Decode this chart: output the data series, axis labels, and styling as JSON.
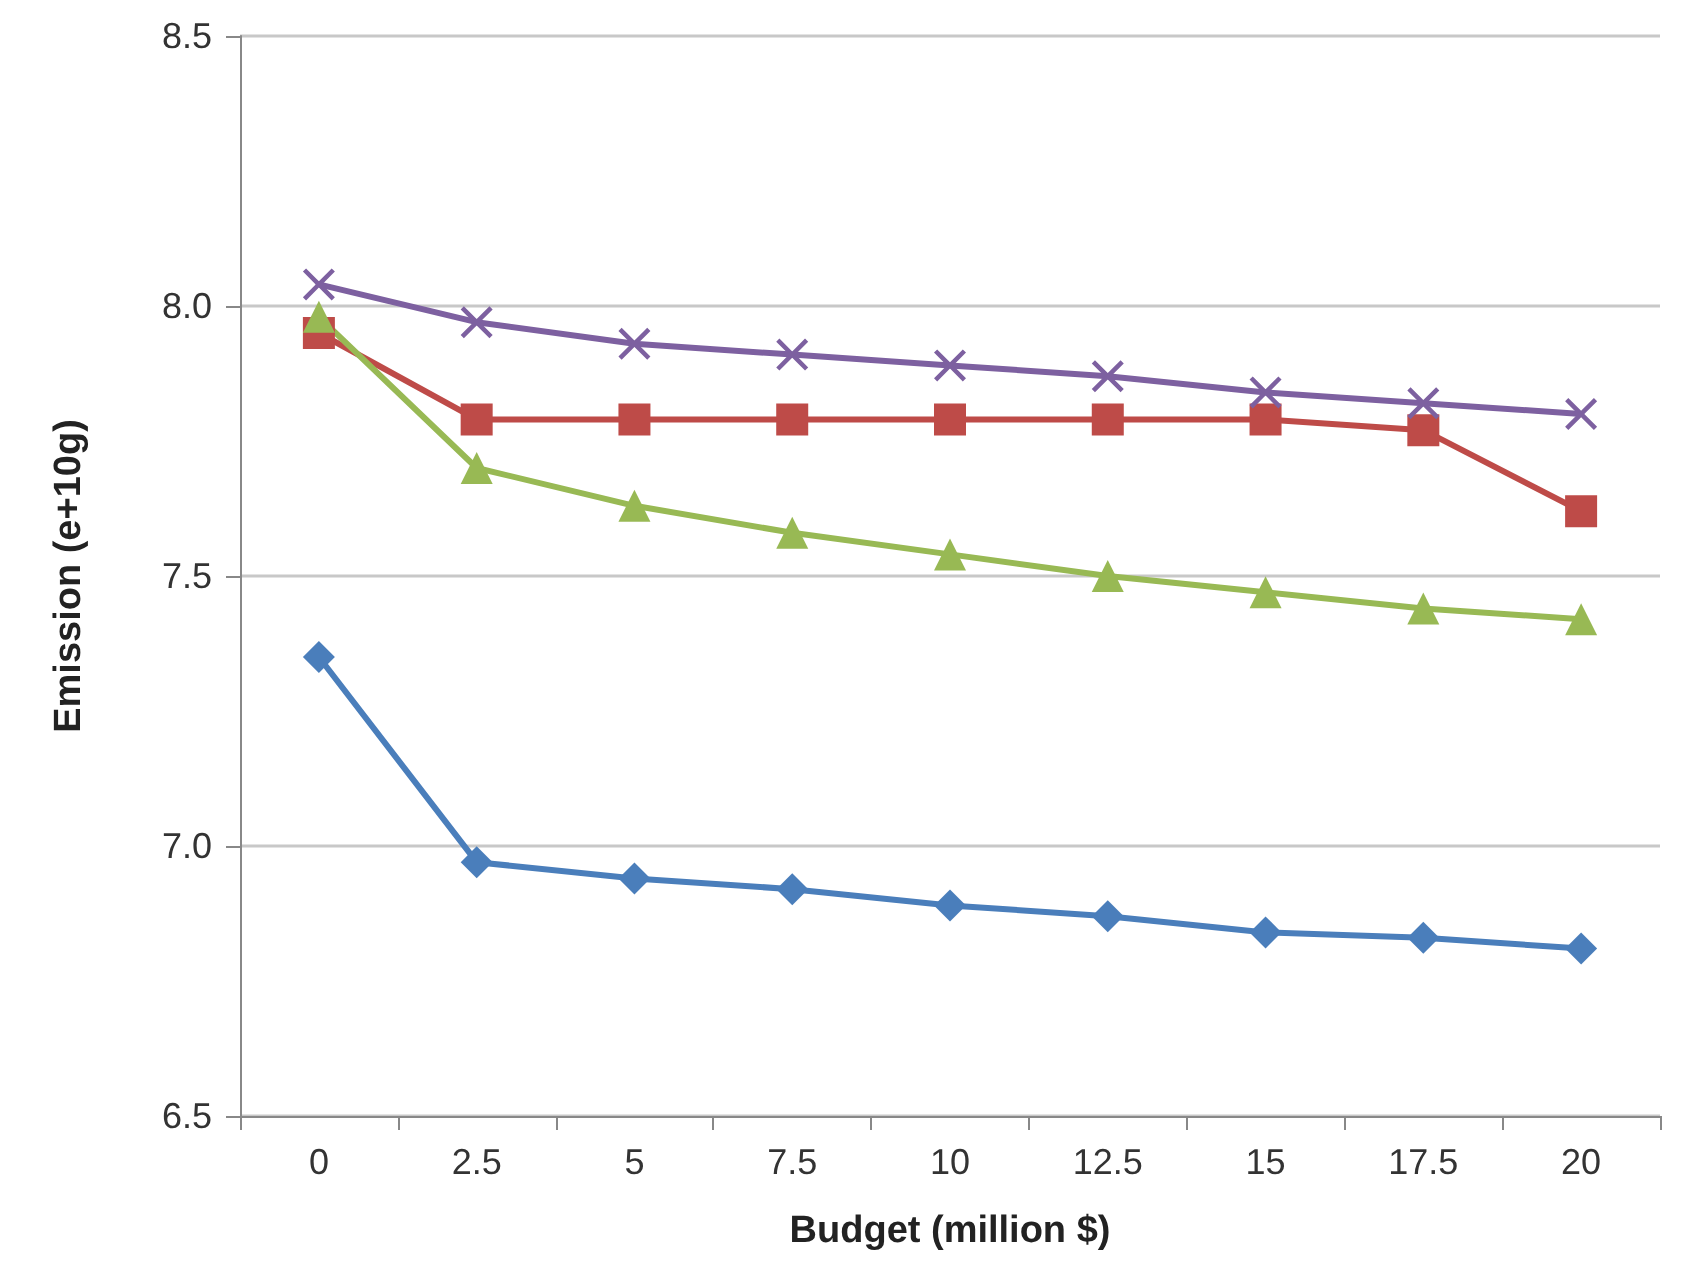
{
  "chart_data": {
    "type": "line",
    "xlabel": "Budget (million $)",
    "ylabel": "Emission (e+10g)",
    "categories": [
      "0",
      "2.5",
      "5",
      "7.5",
      "10",
      "12.5",
      "15",
      "17.5",
      "20"
    ],
    "series": [
      {
        "color": "#4a7ebb",
        "marker": "diamond",
        "values": [
          7.35,
          6.97,
          6.94,
          6.92,
          6.89,
          6.87,
          6.84,
          6.83,
          6.81
        ]
      },
      {
        "color": "#be4b48",
        "marker": "square",
        "values": [
          7.95,
          7.79,
          7.79,
          7.79,
          7.79,
          7.79,
          7.79,
          7.77,
          7.62
        ]
      },
      {
        "color": "#98b954",
        "marker": "triangle",
        "values": [
          7.98,
          7.7,
          7.63,
          7.58,
          7.54,
          7.5,
          7.47,
          7.44,
          7.42
        ]
      },
      {
        "color": "#7d60a0",
        "marker": "cross",
        "values": [
          8.04,
          7.97,
          7.93,
          7.91,
          7.89,
          7.87,
          7.84,
          7.82,
          7.8
        ]
      }
    ],
    "ylim": [
      6.5,
      8.5
    ],
    "yticks": [
      {
        "value": 6.5,
        "label": "6.5"
      },
      {
        "value": 7,
        "label": "7.0"
      },
      {
        "value": 7.5,
        "label": "7.5"
      },
      {
        "value": 8,
        "label": "8.0"
      },
      {
        "value": 8.5,
        "label": "8.5"
      }
    ],
    "grid": "y"
  }
}
